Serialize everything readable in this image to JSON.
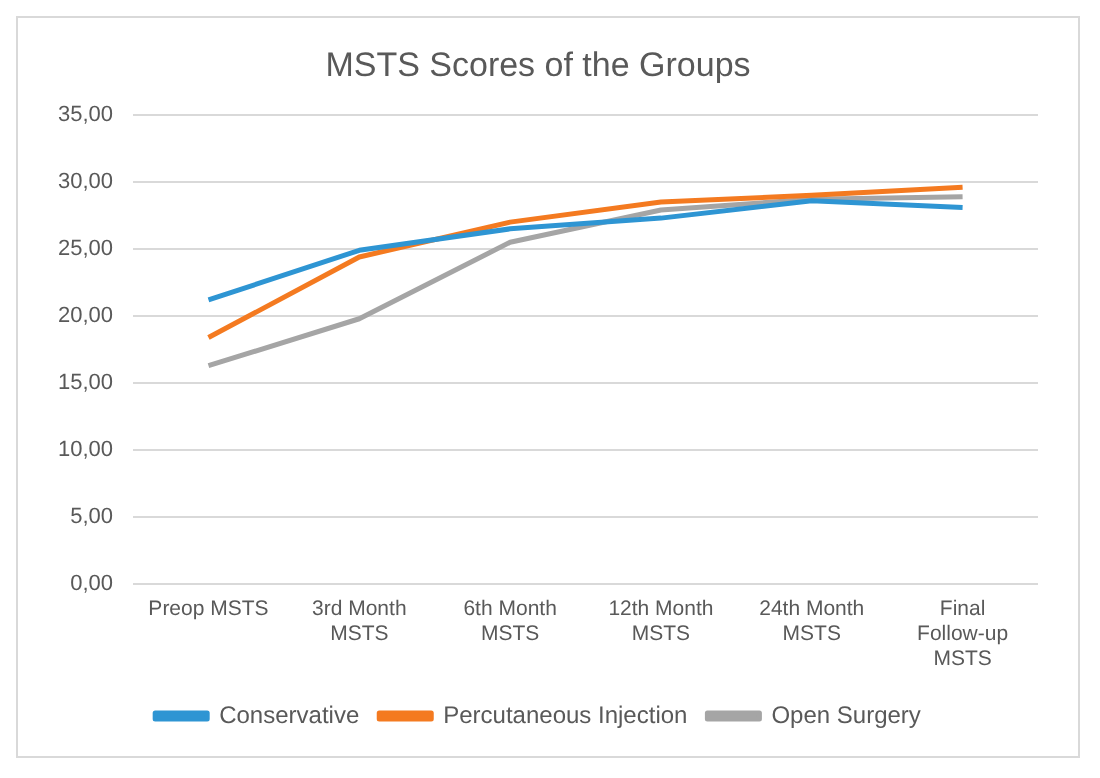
{
  "chart_data": {
    "type": "line",
    "title": "MSTS Scores of the Groups",
    "categories": [
      "Preop MSTS",
      "3rd Month MSTS",
      "6th Month MSTS",
      "12th Month MSTS",
      "24th Month MSTS",
      "Final Follow-up MSTS"
    ],
    "series": [
      {
        "name": "Conservative",
        "color": "#2e95d3",
        "values": [
          21.2,
          24.9,
          26.5,
          27.3,
          28.6,
          28.1
        ]
      },
      {
        "name": "Percutaneous Injection",
        "color": "#f47a20",
        "values": [
          18.4,
          24.4,
          27.0,
          28.5,
          29.0,
          29.6
        ]
      },
      {
        "name": "Open Surgery",
        "color": "#a5a5a5",
        "values": [
          16.3,
          19.8,
          25.5,
          27.9,
          28.7,
          28.9
        ]
      }
    ],
    "ylim": [
      0,
      35
    ],
    "yticks": [
      {
        "value": 0,
        "label": "0,00"
      },
      {
        "value": 5,
        "label": "5,00"
      },
      {
        "value": 10,
        "label": "10,00"
      },
      {
        "value": 15,
        "label": "15,00"
      },
      {
        "value": 20,
        "label": "20,00"
      },
      {
        "value": 25,
        "label": "25,00"
      },
      {
        "value": 30,
        "label": "30,00"
      },
      {
        "value": 35,
        "label": "35,00"
      }
    ],
    "grid": "y",
    "legend": "bottom",
    "marker": "none",
    "line_style": "solid"
  }
}
